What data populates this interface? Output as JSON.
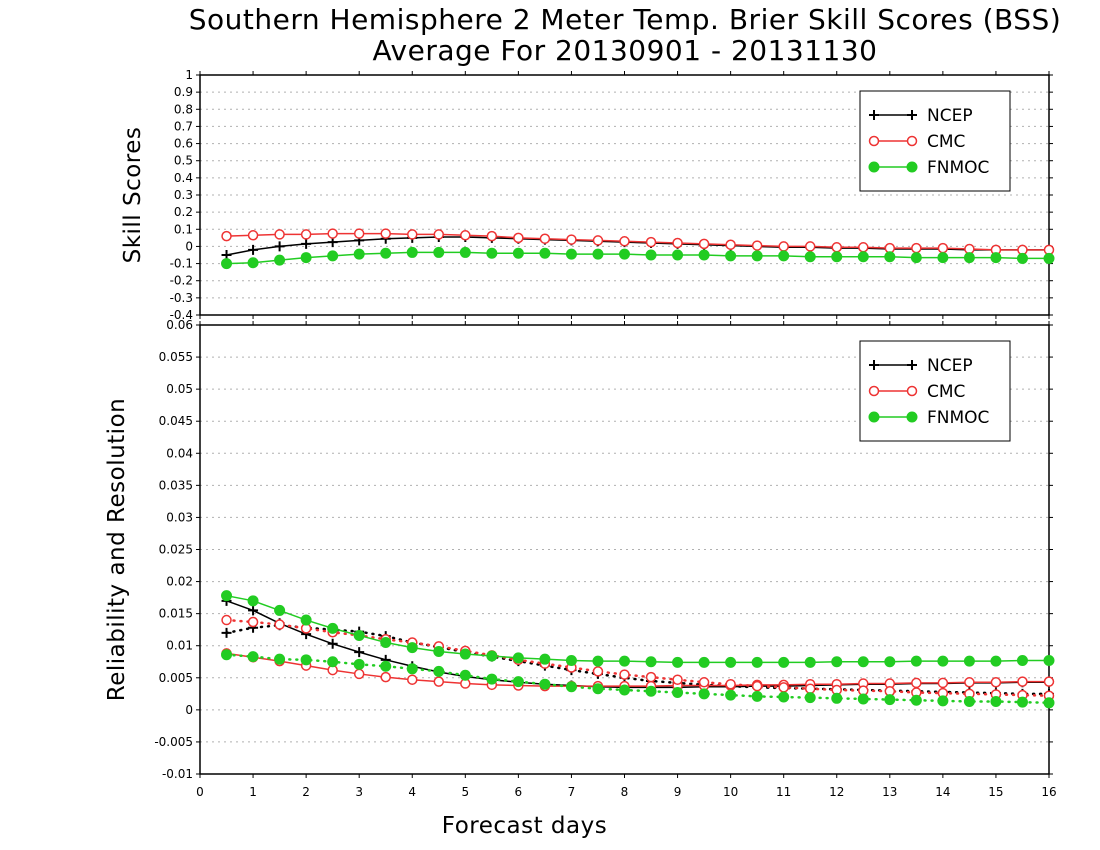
{
  "title": {
    "line1": "Southern Hemisphere 2 Meter Temp. Brier Skill Scores (BSS)",
    "line2": "Average For 20130901 - 20131130"
  },
  "colors": {
    "NCEP": "#000000",
    "CMC": "#ee3333",
    "FNMOC": "#22cc22",
    "grid": "#b0b0b0"
  },
  "chart_data": [
    {
      "type": "line",
      "panel": "top",
      "ylabel": "Skill Scores",
      "xlim": [
        0,
        16
      ],
      "ylim": [
        -0.4,
        1
      ],
      "yticks": [
        "-0.4",
        "-0.3",
        "-0.2",
        "-0.1",
        "0",
        "0.1",
        "0.2",
        "0.3",
        "0.4",
        "0.5",
        "0.6",
        "0.7",
        "0.8",
        "0.9",
        "1"
      ],
      "grid": true,
      "legend_position": "top-right",
      "legend": [
        "NCEP",
        "CMC",
        "FNMOC"
      ],
      "x": [
        0.5,
        1,
        1.5,
        2,
        2.5,
        3,
        3.5,
        4,
        4.5,
        5,
        5.5,
        6,
        6.5,
        7,
        7.5,
        8,
        8.5,
        9,
        9.5,
        10,
        10.5,
        11,
        11.5,
        12,
        12.5,
        13,
        13.5,
        14,
        14.5,
        15,
        15.5,
        16
      ],
      "series": [
        {
          "name": "NCEP",
          "marker": "plus",
          "values": [
            -0.05,
            -0.02,
            0.0,
            0.015,
            0.025,
            0.035,
            0.045,
            0.05,
            0.055,
            0.055,
            0.05,
            0.045,
            0.04,
            0.035,
            0.03,
            0.025,
            0.02,
            0.015,
            0.01,
            0.005,
            0.0,
            -0.005,
            -0.005,
            -0.01,
            -0.01,
            -0.015,
            -0.015,
            -0.015,
            -0.02,
            -0.02,
            -0.02,
            -0.02
          ]
        },
        {
          "name": "CMC",
          "marker": "open-circle",
          "values": [
            0.06,
            0.065,
            0.07,
            0.07,
            0.075,
            0.075,
            0.075,
            0.07,
            0.07,
            0.065,
            0.06,
            0.05,
            0.045,
            0.04,
            0.035,
            0.03,
            0.025,
            0.02,
            0.015,
            0.01,
            0.005,
            0.0,
            0.0,
            -0.005,
            -0.005,
            -0.01,
            -0.01,
            -0.01,
            -0.015,
            -0.02,
            -0.02,
            -0.02
          ]
        },
        {
          "name": "FNMOC",
          "marker": "filled-circle",
          "values": [
            -0.1,
            -0.095,
            -0.08,
            -0.065,
            -0.055,
            -0.045,
            -0.04,
            -0.035,
            -0.035,
            -0.035,
            -0.04,
            -0.04,
            -0.04,
            -0.045,
            -0.045,
            -0.045,
            -0.05,
            -0.05,
            -0.05,
            -0.055,
            -0.055,
            -0.055,
            -0.06,
            -0.06,
            -0.06,
            -0.06,
            -0.065,
            -0.065,
            -0.065,
            -0.065,
            -0.07,
            -0.07
          ]
        }
      ]
    },
    {
      "type": "line",
      "panel": "bottom",
      "xlabel": "Forecast days",
      "ylabel": "Reliability and Resolution",
      "xlim": [
        0,
        16
      ],
      "xticks": [
        "0",
        "1",
        "2",
        "3",
        "4",
        "5",
        "6",
        "7",
        "8",
        "9",
        "10",
        "11",
        "12",
        "13",
        "14",
        "15",
        "16"
      ],
      "ylim": [
        -0.01,
        0.06
      ],
      "yticks": [
        "-0.01",
        "-0.005",
        "0",
        "0.005",
        "0.01",
        "0.015",
        "0.02",
        "0.025",
        "0.03",
        "0.035",
        "0.04",
        "0.045",
        "0.05",
        "0.055",
        "0.06"
      ],
      "grid": true,
      "legend_position": "top-right",
      "legend": [
        "NCEP",
        "CMC",
        "FNMOC"
      ],
      "x": [
        0.5,
        1,
        1.5,
        2,
        2.5,
        3,
        3.5,
        4,
        4.5,
        5,
        5.5,
        6,
        6.5,
        7,
        7.5,
        8,
        8.5,
        9,
        9.5,
        10,
        10.5,
        11,
        11.5,
        12,
        12.5,
        13,
        13.5,
        14,
        14.5,
        15,
        15.5,
        16
      ],
      "series": [
        {
          "name": "NCEP",
          "marker": "plus",
          "style": "solid",
          "values": [
            0.017,
            0.0155,
            0.0135,
            0.0118,
            0.0103,
            0.009,
            0.0078,
            0.0068,
            0.0059,
            0.0052,
            0.0047,
            0.0043,
            0.004,
            0.0038,
            0.0036,
            0.0035,
            0.0035,
            0.0035,
            0.0036,
            0.0036,
            0.0037,
            0.0037,
            0.0038,
            0.0039,
            0.004,
            0.004,
            0.0041,
            0.0041,
            0.0042,
            0.0042,
            0.0043,
            0.0043
          ]
        },
        {
          "name": "NCEP",
          "marker": "plus",
          "style": "dotted",
          "values": [
            0.012,
            0.0128,
            0.0132,
            0.0128,
            0.0125,
            0.0122,
            0.0115,
            0.0105,
            0.0098,
            0.009,
            0.0083,
            0.0076,
            0.0069,
            0.0062,
            0.0056,
            0.005,
            0.0045,
            0.0042,
            0.0039,
            0.0037,
            0.0035,
            0.0034,
            0.0033,
            0.0032,
            0.0031,
            0.003,
            0.0029,
            0.0028,
            0.0027,
            0.0026,
            0.0025,
            0.0025
          ]
        },
        {
          "name": "CMC",
          "marker": "open-circle",
          "style": "solid",
          "values": [
            0.0088,
            0.0082,
            0.0076,
            0.0069,
            0.0062,
            0.0056,
            0.0051,
            0.0047,
            0.0044,
            0.0041,
            0.0039,
            0.0038,
            0.0037,
            0.0037,
            0.0037,
            0.0037,
            0.0037,
            0.0038,
            0.0038,
            0.0038,
            0.0039,
            0.0039,
            0.004,
            0.004,
            0.0041,
            0.0041,
            0.0042,
            0.0042,
            0.0043,
            0.0043,
            0.0044,
            0.0044
          ]
        },
        {
          "name": "CMC",
          "marker": "open-circle",
          "style": "dotted",
          "values": [
            0.014,
            0.0137,
            0.0133,
            0.0127,
            0.0121,
            0.0116,
            0.011,
            0.0105,
            0.0099,
            0.0092,
            0.0085,
            0.0078,
            0.0072,
            0.0066,
            0.006,
            0.0055,
            0.0051,
            0.0047,
            0.0043,
            0.004,
            0.0037,
            0.0035,
            0.0033,
            0.0031,
            0.003,
            0.0029,
            0.0027,
            0.0026,
            0.0025,
            0.0024,
            0.0023,
            0.0022
          ]
        },
        {
          "name": "FNMOC",
          "marker": "filled-circle",
          "style": "solid",
          "values": [
            0.0178,
            0.017,
            0.0155,
            0.014,
            0.0127,
            0.0116,
            0.0105,
            0.0097,
            0.0091,
            0.0087,
            0.0084,
            0.0081,
            0.0079,
            0.0077,
            0.0076,
            0.0076,
            0.0075,
            0.0074,
            0.0074,
            0.0074,
            0.0074,
            0.0074,
            0.0074,
            0.0075,
            0.0075,
            0.0075,
            0.0076,
            0.0076,
            0.0076,
            0.0076,
            0.0077,
            0.0077
          ]
        },
        {
          "name": "FNMOC",
          "marker": "filled-circle",
          "style": "dotted",
          "values": [
            0.0086,
            0.0083,
            0.0079,
            0.0078,
            0.0075,
            0.0071,
            0.0068,
            0.0064,
            0.006,
            0.0054,
            0.0048,
            0.0044,
            0.004,
            0.0036,
            0.0033,
            0.0031,
            0.0029,
            0.0027,
            0.0025,
            0.0023,
            0.0021,
            0.002,
            0.0019,
            0.0018,
            0.0017,
            0.0016,
            0.0015,
            0.0014,
            0.0013,
            0.0013,
            0.0012,
            0.0011
          ]
        }
      ]
    }
  ]
}
